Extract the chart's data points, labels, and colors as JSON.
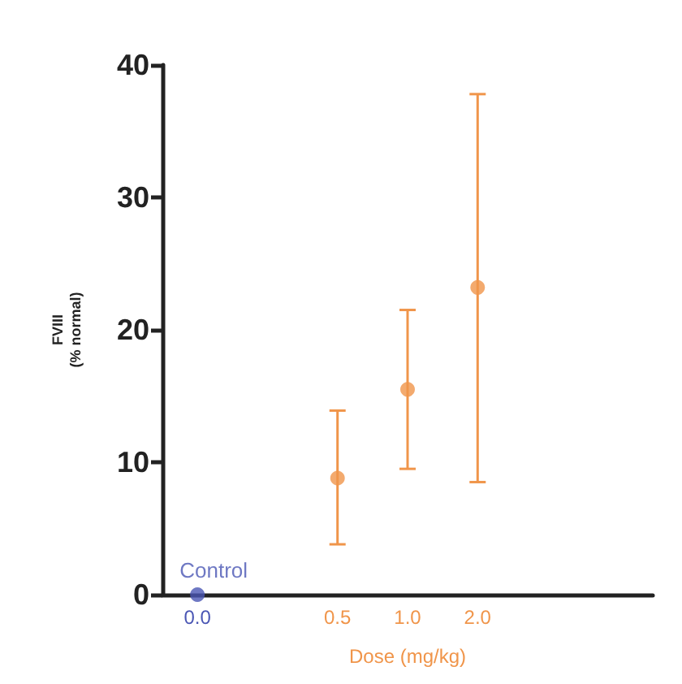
{
  "chart_data": {
    "type": "scatter",
    "xlabel": "Dose (mg/kg)",
    "ylabel": "FVIII\n(% normal)",
    "categories": [
      "0.0",
      null,
      "0.5",
      "1.0",
      "2.0",
      null,
      null
    ],
    "series": [
      {
        "name": "Control",
        "color": "#4a56b4",
        "x": [
          "0.0"
        ],
        "values": [
          0
        ]
      },
      {
        "color": "#f0954a",
        "x": [
          "0.5",
          "1.0",
          "2.0"
        ],
        "values": [
          8.8,
          15.5,
          23.2
        ],
        "errors": [
          [
            3.8,
            13.9
          ],
          [
            9.5,
            21.5
          ],
          [
            8.5,
            37.8
          ]
        ]
      }
    ],
    "ylim": [
      0,
      40
    ],
    "yticks": [
      0,
      10,
      20,
      30,
      40
    ],
    "grid": false,
    "legend": false,
    "marker": "circle"
  }
}
